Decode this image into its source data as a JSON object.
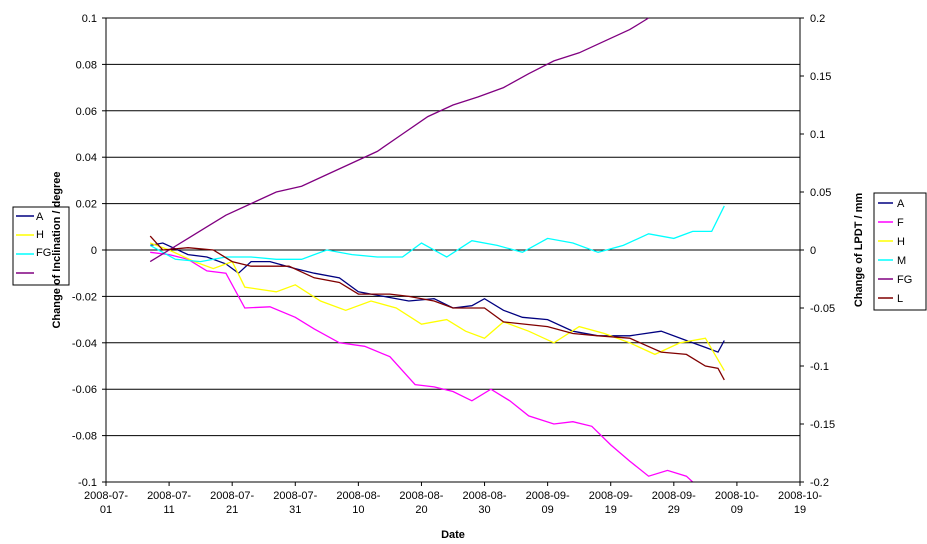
{
  "chart_data": {
    "type": "line",
    "xlabel": "Date",
    "ylabel_left": "Change of Inclination / degree",
    "ylabel_right": "Change of LPDT / mm",
    "y_left_lim": [
      -0.1,
      0.1
    ],
    "y_right_lim": [
      -0.2,
      0.2
    ],
    "x_lim": [
      "2008-07-01",
      "2008-10-19"
    ],
    "x_tick_labels": [
      [
        "2008-07-",
        "01"
      ],
      [
        "2008-07-",
        "11"
      ],
      [
        "2008-07-",
        "21"
      ],
      [
        "2008-07-",
        "31"
      ],
      [
        "2008-08-",
        "10"
      ],
      [
        "2008-08-",
        "20"
      ],
      [
        "2008-08-",
        "30"
      ],
      [
        "2008-09-",
        "09"
      ],
      [
        "2008-09-",
        "19"
      ],
      [
        "2008-09-",
        "29"
      ],
      [
        "2008-10-",
        "09"
      ],
      [
        "2008-10-",
        "19"
      ]
    ],
    "y_left_ticks": [
      "0.1",
      "0.08",
      "0.06",
      "0.04",
      "0.02",
      "0",
      "-0.02",
      "-0.04",
      "-0.06",
      "-0.08",
      "-0.1"
    ],
    "y_right_ticks": [
      "0.2",
      "0.15",
      "0.1",
      "0.05",
      "0",
      "-0.05",
      "-0.1",
      "-0.15",
      "-0.2"
    ],
    "grid": "horizontal",
    "legend_left_entries": [
      "A",
      "F",
      "H",
      "M",
      "FG",
      "L"
    ],
    "legend_left_visible_labels": [
      "A",
      "",
      "H",
      "",
      "FG",
      ""
    ],
    "legend_placement": "right",
    "series": [
      {
        "name": "A",
        "axis": "left",
        "color": "#000080",
        "points": [
          [
            "2008-07-08",
            0.002
          ],
          [
            "2008-07-10",
            0.003
          ],
          [
            "2008-07-14",
            -0.002
          ],
          [
            "2008-07-17",
            -0.003
          ],
          [
            "2008-07-20",
            -0.006
          ],
          [
            "2008-07-22",
            -0.01
          ],
          [
            "2008-07-24",
            -0.005
          ],
          [
            "2008-07-27",
            -0.005
          ],
          [
            "2008-07-31",
            -0.008
          ],
          [
            "2008-08-03",
            -0.01
          ],
          [
            "2008-08-07",
            -0.012
          ],
          [
            "2008-08-10",
            -0.018
          ],
          [
            "2008-08-14",
            -0.02
          ],
          [
            "2008-08-18",
            -0.022
          ],
          [
            "2008-08-22",
            -0.021
          ],
          [
            "2008-08-25",
            -0.025
          ],
          [
            "2008-08-28",
            -0.024
          ],
          [
            "2008-08-30",
            -0.021
          ],
          [
            "2008-09-02",
            -0.026
          ],
          [
            "2008-09-05",
            -0.029
          ],
          [
            "2008-09-09",
            -0.03
          ],
          [
            "2008-09-13",
            -0.035
          ],
          [
            "2008-09-17",
            -0.037
          ],
          [
            "2008-09-22",
            -0.037
          ],
          [
            "2008-09-27",
            -0.035
          ],
          [
            "2008-10-01",
            -0.039
          ],
          [
            "2008-10-04",
            -0.042
          ],
          [
            "2008-10-06",
            -0.044
          ],
          [
            "2008-10-07",
            -0.039
          ]
        ]
      },
      {
        "name": "F",
        "axis": "right",
        "color": "#ff00ff",
        "points": [
          [
            "2008-07-08",
            -0.002
          ],
          [
            "2008-07-11",
            -0.004
          ],
          [
            "2008-07-14",
            -0.008
          ],
          [
            "2008-07-17",
            -0.018
          ],
          [
            "2008-07-20",
            -0.02
          ],
          [
            "2008-07-23",
            -0.05
          ],
          [
            "2008-07-27",
            -0.049
          ],
          [
            "2008-07-31",
            -0.058
          ],
          [
            "2008-08-03",
            -0.068
          ],
          [
            "2008-08-07",
            -0.08
          ],
          [
            "2008-08-11",
            -0.083
          ],
          [
            "2008-08-15",
            -0.092
          ],
          [
            "2008-08-19",
            -0.116
          ],
          [
            "2008-08-22",
            -0.118
          ],
          [
            "2008-08-25",
            -0.122
          ],
          [
            "2008-08-28",
            -0.13
          ],
          [
            "2008-08-31",
            -0.12
          ],
          [
            "2008-09-03",
            -0.13
          ],
          [
            "2008-09-06",
            -0.143
          ],
          [
            "2008-09-10",
            -0.15
          ],
          [
            "2008-09-13",
            -0.148
          ],
          [
            "2008-09-16",
            -0.152
          ],
          [
            "2008-09-19",
            -0.168
          ],
          [
            "2008-09-22",
            -0.182
          ],
          [
            "2008-09-25",
            -0.195
          ],
          [
            "2008-09-28",
            -0.19
          ],
          [
            "2008-10-01",
            -0.195
          ],
          [
            "2008-10-02",
            -0.2
          ]
        ]
      },
      {
        "name": "H",
        "axis": "left",
        "color": "#ffff00",
        "points": [
          [
            "2008-07-08",
            0.003
          ],
          [
            "2008-07-11",
            0.0
          ],
          [
            "2008-07-15",
            -0.005
          ],
          [
            "2008-07-18",
            -0.008
          ],
          [
            "2008-07-21",
            -0.005
          ],
          [
            "2008-07-23",
            -0.016
          ],
          [
            "2008-07-28",
            -0.018
          ],
          [
            "2008-07-31",
            -0.015
          ],
          [
            "2008-08-04",
            -0.022
          ],
          [
            "2008-08-08",
            -0.026
          ],
          [
            "2008-08-12",
            -0.022
          ],
          [
            "2008-08-16",
            -0.025
          ],
          [
            "2008-08-20",
            -0.032
          ],
          [
            "2008-08-24",
            -0.03
          ],
          [
            "2008-08-27",
            -0.035
          ],
          [
            "2008-08-30",
            -0.038
          ],
          [
            "2008-09-02",
            -0.031
          ],
          [
            "2008-09-06",
            -0.035
          ],
          [
            "2008-09-10",
            -0.04
          ],
          [
            "2008-09-14",
            -0.033
          ],
          [
            "2008-09-18",
            -0.036
          ],
          [
            "2008-09-22",
            -0.04
          ],
          [
            "2008-09-26",
            -0.045
          ],
          [
            "2008-09-30",
            -0.04
          ],
          [
            "2008-10-04",
            -0.038
          ],
          [
            "2008-10-07",
            -0.052
          ]
        ]
      },
      {
        "name": "M",
        "axis": "left",
        "color": "#00ffff",
        "points": [
          [
            "2008-07-08",
            0.002
          ],
          [
            "2008-07-12",
            -0.004
          ],
          [
            "2008-07-16",
            -0.005
          ],
          [
            "2008-07-20",
            -0.003
          ],
          [
            "2008-07-24",
            -0.003
          ],
          [
            "2008-07-28",
            -0.004
          ],
          [
            "2008-08-01",
            -0.004
          ],
          [
            "2008-08-05",
            0.0
          ],
          [
            "2008-08-09",
            -0.002
          ],
          [
            "2008-08-13",
            -0.003
          ],
          [
            "2008-08-17",
            -0.003
          ],
          [
            "2008-08-20",
            0.003
          ],
          [
            "2008-08-24",
            -0.003
          ],
          [
            "2008-08-28",
            0.004
          ],
          [
            "2008-09-01",
            0.002
          ],
          [
            "2008-09-05",
            -0.001
          ],
          [
            "2008-09-09",
            0.005
          ],
          [
            "2008-09-13",
            0.003
          ],
          [
            "2008-09-17",
            -0.001
          ],
          [
            "2008-09-21",
            0.002
          ],
          [
            "2008-09-25",
            0.007
          ],
          [
            "2008-09-29",
            0.005
          ],
          [
            "2008-10-02",
            0.008
          ],
          [
            "2008-10-05",
            0.008
          ],
          [
            "2008-10-07",
            0.019
          ]
        ]
      },
      {
        "name": "FG",
        "axis": "right",
        "color": "#800080",
        "points": [
          [
            "2008-07-08",
            -0.01
          ],
          [
            "2008-07-11",
            0.0
          ],
          [
            "2008-07-14",
            0.01
          ],
          [
            "2008-07-17",
            0.02
          ],
          [
            "2008-07-20",
            0.03
          ],
          [
            "2008-07-24",
            0.04
          ],
          [
            "2008-07-28",
            0.05
          ],
          [
            "2008-08-01",
            0.055
          ],
          [
            "2008-08-05",
            0.065
          ],
          [
            "2008-08-09",
            0.075
          ],
          [
            "2008-08-13",
            0.085
          ],
          [
            "2008-08-17",
            0.1
          ],
          [
            "2008-08-21",
            0.115
          ],
          [
            "2008-08-25",
            0.125
          ],
          [
            "2008-08-29",
            0.132
          ],
          [
            "2008-09-02",
            0.14
          ],
          [
            "2008-09-06",
            0.152
          ],
          [
            "2008-09-10",
            0.163
          ],
          [
            "2008-09-14",
            0.17
          ],
          [
            "2008-09-18",
            0.18
          ],
          [
            "2008-09-22",
            0.19
          ],
          [
            "2008-09-25",
            0.2
          ]
        ]
      },
      {
        "name": "L",
        "axis": "left",
        "color": "#800000",
        "points": [
          [
            "2008-07-08",
            0.006
          ],
          [
            "2008-07-10",
            0.0
          ],
          [
            "2008-07-14",
            0.001
          ],
          [
            "2008-07-18",
            0.0
          ],
          [
            "2008-07-21",
            -0.005
          ],
          [
            "2008-07-24",
            -0.007
          ],
          [
            "2008-07-30",
            -0.007
          ],
          [
            "2008-08-03",
            -0.012
          ],
          [
            "2008-08-07",
            -0.014
          ],
          [
            "2008-08-10",
            -0.019
          ],
          [
            "2008-08-15",
            -0.019
          ],
          [
            "2008-08-18",
            -0.02
          ],
          [
            "2008-08-22",
            -0.022
          ],
          [
            "2008-08-25",
            -0.025
          ],
          [
            "2008-08-30",
            -0.025
          ],
          [
            "2008-09-02",
            -0.031
          ],
          [
            "2008-09-09",
            -0.033
          ],
          [
            "2008-09-13",
            -0.036
          ],
          [
            "2008-09-17",
            -0.037
          ],
          [
            "2008-09-22",
            -0.038
          ],
          [
            "2008-09-27",
            -0.044
          ],
          [
            "2008-10-01",
            -0.045
          ],
          [
            "2008-10-04",
            -0.05
          ],
          [
            "2008-10-06",
            -0.051
          ],
          [
            "2008-10-07",
            -0.056
          ]
        ]
      }
    ]
  }
}
